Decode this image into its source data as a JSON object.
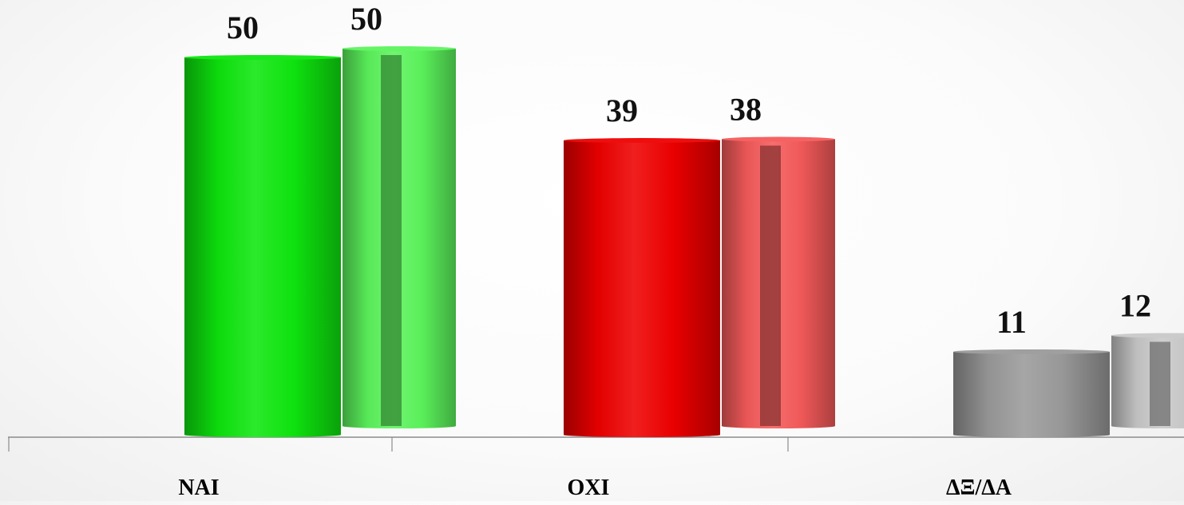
{
  "chart_data": {
    "type": "bar",
    "categories": [
      "NAI",
      "OXI",
      "ΔΞ/ΔΑ"
    ],
    "series": [
      {
        "values": [
          50,
          39,
          11
        ]
      },
      {
        "values": [
          50,
          38,
          12
        ]
      }
    ],
    "title": "",
    "xlabel": "",
    "ylabel": "",
    "ylim": [
      0,
      50
    ],
    "grid": false,
    "legend": "none",
    "colors": {
      "NAI": [
        "#0ee60e",
        "#5cf45c"
      ],
      "OXI": [
        "#ee0000",
        "#f55a5a"
      ],
      "ΔΞ/ΔΑ": [
        "#9a9a9a",
        "#c8c8c8"
      ]
    }
  }
}
